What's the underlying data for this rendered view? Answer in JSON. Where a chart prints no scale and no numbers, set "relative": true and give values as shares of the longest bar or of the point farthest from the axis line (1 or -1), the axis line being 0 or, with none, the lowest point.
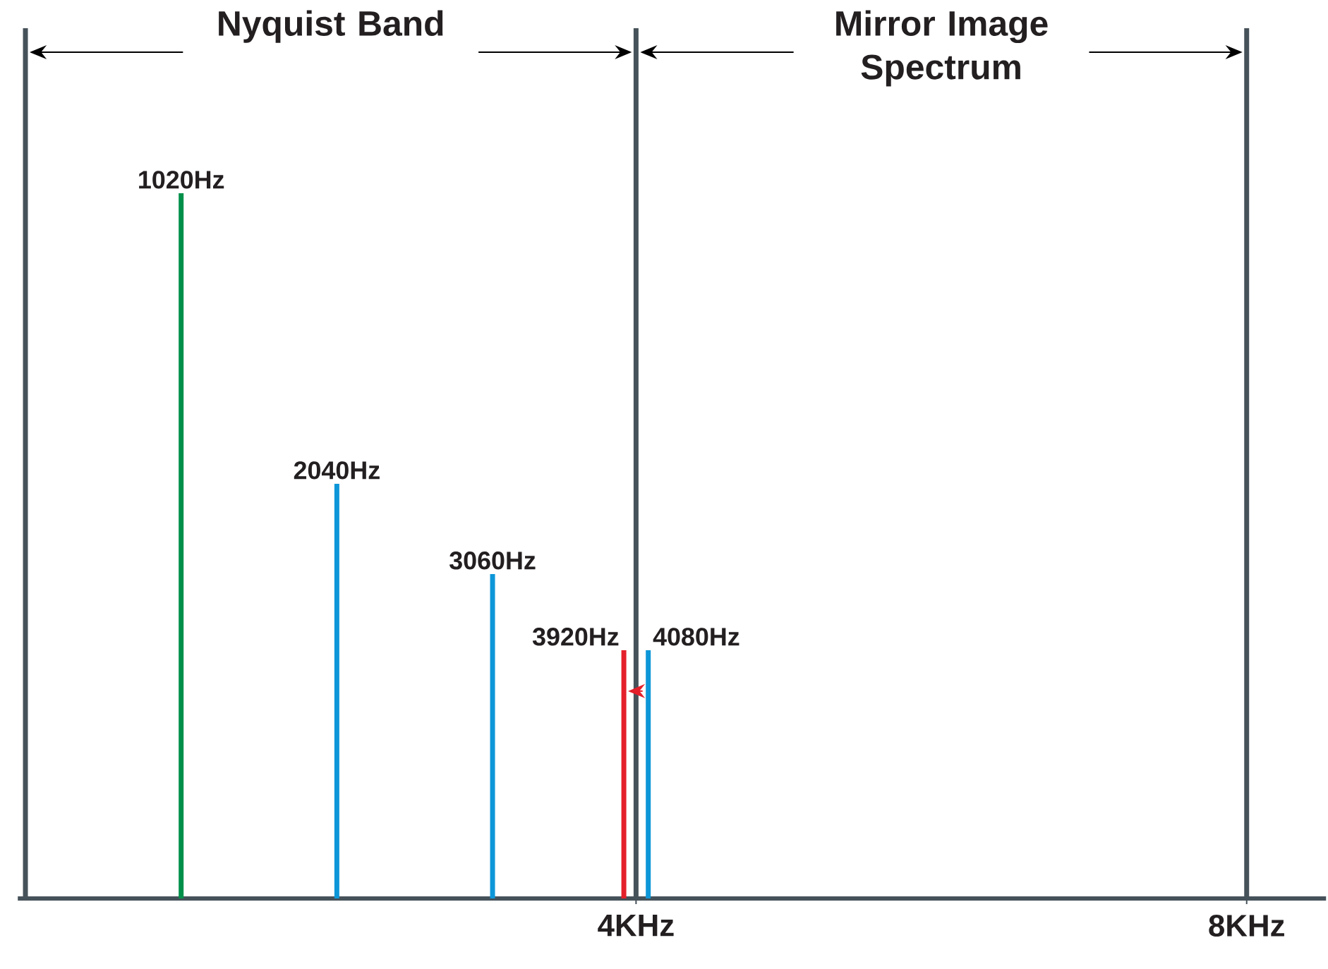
{
  "chart_data": {
    "type": "bar",
    "relative": true,
    "x": [
      1.02,
      2.04,
      3.06,
      3.92,
      4.08
    ],
    "values": [
      1,
      0.588,
      0.46,
      0.352,
      0.352
    ],
    "colors": [
      "#00904a",
      "#0d96d8",
      "#0d96d8",
      "#e4202b",
      "#0d96d8"
    ],
    "xlim": [
      -0.05,
      8.52
    ],
    "xticks": [
      {
        "value": 4,
        "label": "4KHz"
      },
      {
        "value": 8,
        "label": "8KHz"
      }
    ],
    "ref_lines": [
      {
        "axis": "x",
        "value": 0,
        "color": "#46525a"
      },
      {
        "axis": "x",
        "value": 4,
        "color": "#46525a"
      },
      {
        "axis": "x",
        "value": 8,
        "color": "#46525a"
      }
    ],
    "annotations": [
      {
        "text": "1020Hz",
        "x": 1.02,
        "y": 1
      },
      {
        "text": "2040Hz",
        "x": 2.04,
        "y": 0.588
      },
      {
        "text": "3060Hz",
        "x": 3.06,
        "y": 0.46
      },
      {
        "text": "3920Hz",
        "x": 3.92,
        "y": 0.352
      },
      {
        "text": "4080Hz",
        "x": 4.08,
        "y": 0.352
      },
      "Nyquist Band",
      "Mirror Image Spectrum"
    ]
  }
}
